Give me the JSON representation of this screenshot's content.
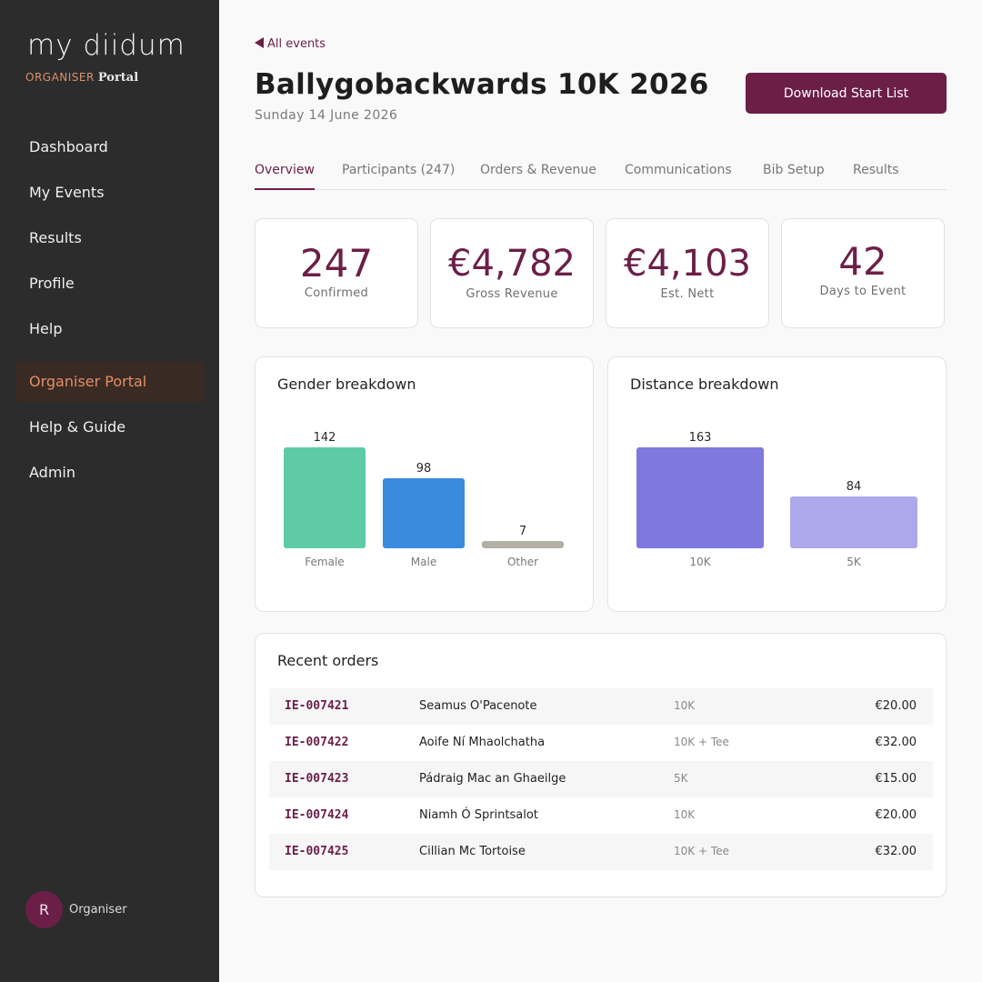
{
  "brand": {
    "name": "my diidum",
    "organiser": "ORGANISER",
    "portal": "Portal"
  },
  "sidebar": {
    "items": [
      {
        "label": "Dashboard",
        "active": false
      },
      {
        "label": "My Events",
        "active": false
      },
      {
        "label": "Results",
        "active": false
      },
      {
        "label": "Profile",
        "active": false
      },
      {
        "label": "Help",
        "active": false
      },
      {
        "label": "Organiser Portal",
        "active": true
      },
      {
        "label": "Help & Guide",
        "active": false
      },
      {
        "label": "Admin",
        "active": false
      }
    ]
  },
  "user": {
    "initial": "R",
    "name": "Organiser"
  },
  "header": {
    "back_label": "All events",
    "title": "Ballygobackwards 10K 2026",
    "date": "Sunday 14 June 2026",
    "download_label": "Download Start List"
  },
  "tabs": [
    {
      "label": "Overview",
      "active": true
    },
    {
      "label": "Participants (247)",
      "active": false
    },
    {
      "label": "Orders & Revenue",
      "active": false
    },
    {
      "label": "Communications",
      "active": false
    },
    {
      "label": "Bib Setup",
      "active": false
    },
    {
      "label": "Results",
      "active": false
    }
  ],
  "stats": [
    {
      "value": "247",
      "label": "Confirmed"
    },
    {
      "value": "€4,782",
      "label": "Gross Revenue"
    },
    {
      "value": "€4,103",
      "label": "Est. Nett"
    },
    {
      "value": "42",
      "label": "Days to Event"
    }
  ],
  "colors": {
    "accent": "#6b1f47",
    "sidebar_bg": "#2c2c2c",
    "active_nav": "#e08f66",
    "female": "#5ecba6",
    "male": "#3a8ae0",
    "other": "#b3b0a4",
    "dist_10k": "#7e78df",
    "dist_5k": "#aea9ea"
  },
  "chart_data": [
    {
      "type": "bar",
      "title": "Gender breakdown",
      "categories": [
        "Female",
        "Male",
        "Other"
      ],
      "values": [
        142,
        98,
        7
      ],
      "colors": [
        "#5ecba6",
        "#3a8ae0",
        "#b3b0a4"
      ]
    },
    {
      "type": "bar",
      "title": "Distance breakdown",
      "categories": [
        "10K",
        "5K"
      ],
      "values": [
        163,
        84
      ],
      "colors": [
        "#7e78df",
        "#aea9ea"
      ]
    }
  ],
  "orders": {
    "title": "Recent orders",
    "rows": [
      {
        "id": "IE-007421",
        "name": "Seamus O'Pacenote",
        "type": "10K",
        "amount": "€20.00"
      },
      {
        "id": "IE-007422",
        "name": "Aoife Ní Mhaolchatha",
        "type": "10K + Tee",
        "amount": "€32.00"
      },
      {
        "id": "IE-007423",
        "name": "Pádraig Mac an Ghaeilge",
        "type": "5K",
        "amount": "€15.00"
      },
      {
        "id": "IE-007424",
        "name": "Niamh Ó Sprintsalot",
        "type": "10K",
        "amount": "€20.00"
      },
      {
        "id": "IE-007425",
        "name": "Cillian Mc Tortoise",
        "type": "10K + Tee",
        "amount": "€32.00"
      }
    ]
  }
}
